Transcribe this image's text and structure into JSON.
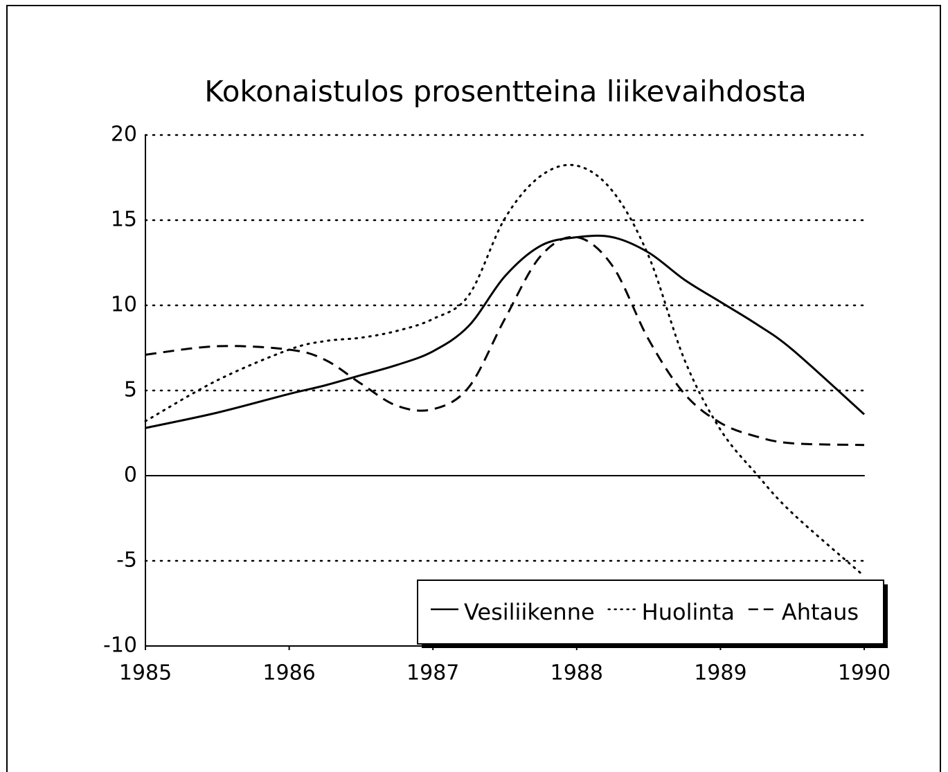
{
  "chart_data": {
    "type": "line",
    "title": "Kokonaistulos prosentteina liikevaihdosta",
    "x": [
      1985,
      1985.5,
      1986,
      1986.25,
      1986.5,
      1986.75,
      1987,
      1987.25,
      1987.5,
      1987.75,
      1988,
      1988.25,
      1988.5,
      1988.75,
      1989,
      1989.25,
      1989.5,
      1990
    ],
    "series": [
      {
        "name": "Vesiliikenne",
        "color": "#000000",
        "dash": "solid",
        "values": [
          2.8,
          3.7,
          4.8,
          5.3,
          5.9,
          6.5,
          7.3,
          8.8,
          11.7,
          13.5,
          14.0,
          14.0,
          13.1,
          11.5,
          10.2,
          8.9,
          7.4,
          3.6
        ]
      },
      {
        "name": "Huolinta",
        "color": "#000000",
        "dash": "dotted",
        "values": [
          3.2,
          5.6,
          7.4,
          7.9,
          8.1,
          8.5,
          9.2,
          10.6,
          15.1,
          17.6,
          18.2,
          16.7,
          12.9,
          6.8,
          2.7,
          0.1,
          -2.2,
          -5.9
        ]
      },
      {
        "name": "Ahtaus",
        "color": "#000000",
        "dash": "dashed",
        "values": [
          7.1,
          7.6,
          7.4,
          6.8,
          5.4,
          4.1,
          3.9,
          5.2,
          9.2,
          12.9,
          14.0,
          12.3,
          8.0,
          4.8,
          3.1,
          2.3,
          1.9,
          1.8
        ]
      }
    ],
    "xlim": [
      1985,
      1990
    ],
    "xticks": [
      1985,
      1986,
      1987,
      1988,
      1989,
      1990
    ],
    "ylim": [
      -10,
      20
    ],
    "yticks": [
      -10,
      -5,
      0,
      5,
      10,
      15,
      20
    ],
    "grid": true,
    "legend": "lower right"
  }
}
